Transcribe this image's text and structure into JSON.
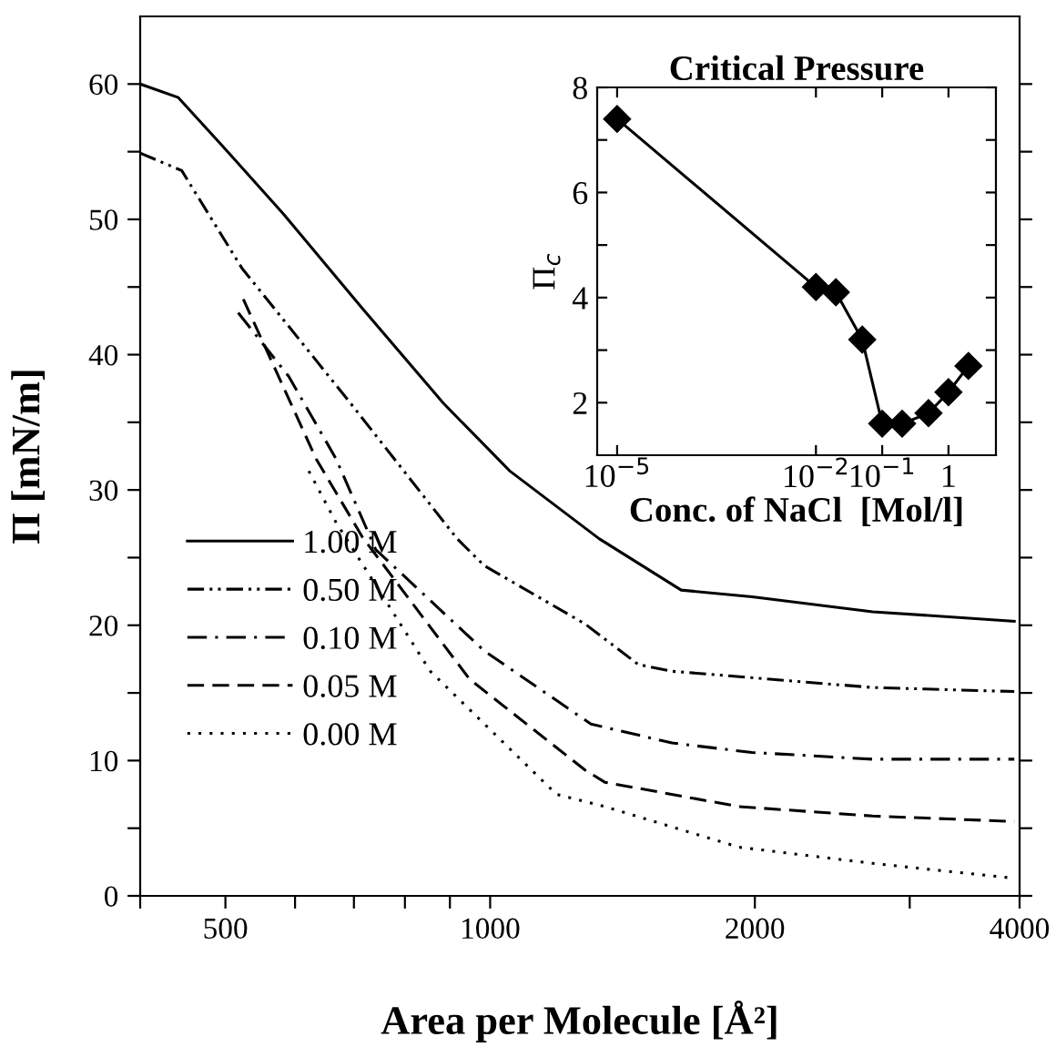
{
  "chart_data": [
    {
      "type": "line",
      "xlabel": "Area per Molecule [Å²]",
      "ylabel": "Π [mN/m]",
      "log": "x",
      "grid": false,
      "legend": "bottom left",
      "xlim": [
        400,
        4000
      ],
      "ylim": [
        0,
        65
      ],
      "xticks": [
        {
          "value": 400,
          "label": null
        },
        500,
        {
          "value": 600,
          "label": null
        },
        {
          "value": 700,
          "label": null
        },
        {
          "value": 800,
          "label": null
        },
        {
          "value": 900,
          "label": null
        },
        1000,
        2000,
        {
          "value": 3000,
          "label": null
        },
        4000
      ],
      "yticks": [
        0,
        {
          "value": 5,
          "label": null
        },
        10,
        {
          "value": 15,
          "label": null
        },
        20,
        {
          "value": 25,
          "label": null
        },
        30,
        {
          "value": 35,
          "label": null
        },
        40,
        {
          "value": 45,
          "label": null
        },
        50,
        {
          "value": 55,
          "label": null
        },
        60
      ],
      "series": [
        {
          "name": "1.00 M",
          "color": "#000000",
          "line_style": "solid",
          "x": [
            400,
            442,
            495,
            582,
            716,
            885,
            1053,
            1330,
            1649,
            1985,
            2723,
            3945
          ],
          "values": [
            60,
            59,
            55.5,
            50.4,
            43.4,
            36.4,
            31.4,
            26.4,
            22.6,
            22.1,
            21.0,
            20.3
          ]
        },
        {
          "name": "0.50 M",
          "color": "#000000",
          "line_style": "dashdotdot",
          "x": [
            400,
            446,
            522,
            694,
            917,
            985,
            1282,
            1474,
            1610,
            2723,
            3945
          ],
          "values": [
            54.9,
            53.6,
            46.4,
            36.4,
            26.4,
            24.4,
            20.1,
            17.1,
            16.6,
            15.4,
            15.1
          ]
        },
        {
          "name": "0.10 M",
          "color": "#000000",
          "line_style": "dashdot",
          "x": [
            517,
            590,
            668,
            741,
            985,
            1302,
            1610,
            1985,
            2723,
            3945
          ],
          "values": [
            43.1,
            38.4,
            32.3,
            25.6,
            18.1,
            12.7,
            11.3,
            10.6,
            10.1,
            10.1
          ]
        },
        {
          "name": "0.05 M",
          "color": "#000000",
          "line_style": "dashed",
          "x": [
            524,
            634,
            716,
            948,
            1282,
            1350,
            1918,
            2723,
            3945
          ],
          "values": [
            44.1,
            32.3,
            26.5,
            16.0,
            9.3,
            8.4,
            6.6,
            5.9,
            5.5
          ]
        },
        {
          "name": "0.00 M",
          "color": "#000000",
          "line_style": "dotted",
          "x": [
            622,
            668,
            855,
            1190,
            1350,
            1918,
            2723,
            3945
          ],
          "values": [
            31.4,
            27.6,
            16.6,
            7.5,
            6.6,
            3.6,
            2.4,
            1.3
          ]
        }
      ]
    },
    {
      "type": "line",
      "title": "Critical Pressure",
      "xlabel": "Conc. of NaCl  [Mol/l]",
      "ylabel": "Π$_{c}$",
      "log": "x",
      "marker": "diamond",
      "xlim": [
        5e-06,
        5.2
      ],
      "ylim": [
        1,
        8
      ],
      "xticks": [
        {
          "value": 1e-05,
          "label": "10$^{−5}$"
        },
        {
          "value": 0.01,
          "label": "10$^{−2}$"
        },
        {
          "value": 0.1,
          "label": "10$^{−1}$"
        },
        1
      ],
      "yticks": [
        2,
        {
          "value": 3,
          "label": null
        },
        4,
        {
          "value": 5,
          "label": null
        },
        6,
        {
          "value": 7,
          "label": null
        },
        8
      ],
      "series": [
        {
          "color": "#000000",
          "x": [
            1e-05,
            0.01,
            0.02,
            0.05,
            0.1,
            0.2,
            0.5,
            1,
            2
          ],
          "values": [
            7.4,
            4.2,
            4.1,
            3.2,
            1.6,
            1.6,
            1.8,
            2.2,
            2.7
          ]
        }
      ]
    }
  ]
}
